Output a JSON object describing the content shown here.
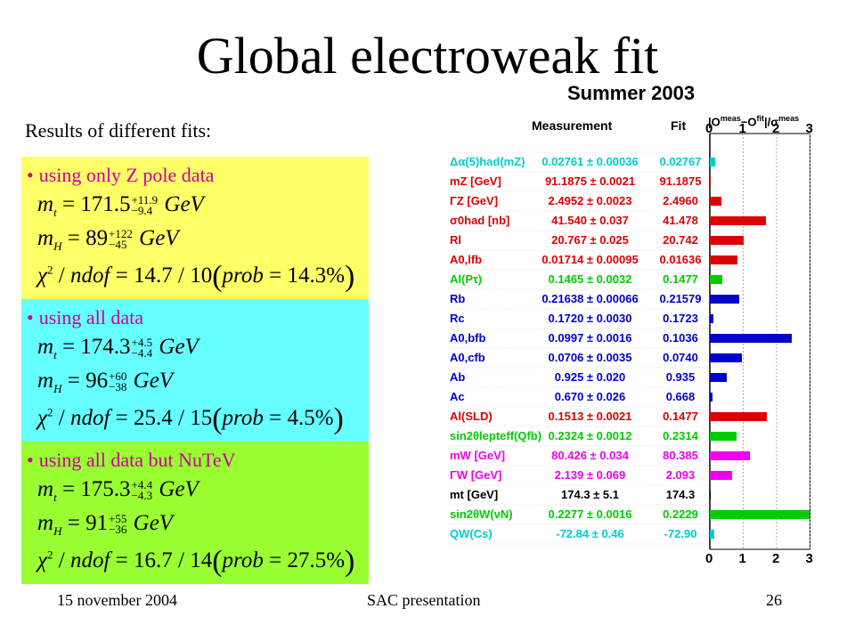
{
  "slide": {
    "title": "Global electroweak fit",
    "subtitle": "Results of different fits:",
    "footer_date": "15 november 2004",
    "footer_center": "SAC presentation",
    "footer_page": "26"
  },
  "fits": [
    {
      "heading": "using only Z pole data",
      "bg": "#ffff66",
      "mt": "171.5",
      "mt_up": "+11.9",
      "mt_dn": "−9.4",
      "mh": "89",
      "mh_up": "+122",
      "mh_dn": "−45",
      "chi2": "14.7",
      "ndof": "10",
      "prob": "14.3"
    },
    {
      "heading": "using all data",
      "bg": "#66ffff",
      "mt": "174.3",
      "mt_up": "+4.5",
      "mt_dn": "−4.4",
      "mh": "96",
      "mh_up": "+60",
      "mh_dn": "−38",
      "chi2": "25.4",
      "ndof": "15",
      "prob": "4.5"
    },
    {
      "heading": "using all data but NuTeV",
      "bg": "#99ff33",
      "mt": "175.3",
      "mt_up": "+4.4",
      "mt_dn": "−4.3",
      "mh": "91",
      "mh_up": "+55",
      "mh_dn": "−36",
      "chi2": "16.7",
      "ndof": "14",
      "prob": "27.5"
    }
  ],
  "figure": {
    "title": "Summer 2003",
    "col_measurement": "Measurement",
    "col_fit": "Fit",
    "axis_header": "|O",
    "axis_header_sup1": "meas",
    "axis_header_mid": "−O",
    "axis_header_sup2": "fit",
    "axis_header_end": "|/σ",
    "axis_header_sup3": "meas",
    "ticks": [
      "0",
      "1",
      "2",
      "3"
    ]
  },
  "chart_data": {
    "type": "bar",
    "title": "Summer 2003",
    "xlim": [
      0,
      3
    ],
    "categories": [
      "Δα(5)had(mZ)",
      "mZ [GeV]",
      "ΓZ [GeV]",
      "σ0had [nb]",
      "Rl",
      "A0,lfb",
      "Al(Pτ)",
      "Rb",
      "Rc",
      "A0,bfb",
      "A0,cfb",
      "Ab",
      "Ac",
      "Al(SLD)",
      "sin2θlepteff(Qfb)",
      "mW [GeV]",
      "ΓW [GeV]",
      "mt [GeV]",
      "sin2θW(νN)",
      "QW(Cs)"
    ],
    "measurements": [
      "0.02761 ± 0.00036",
      "91.1875 ± 0.0021",
      "2.4952 ± 0.0023",
      "41.540 ± 0.037",
      "20.767 ± 0.025",
      "0.01714 ± 0.00095",
      "0.1465 ± 0.0032",
      "0.21638 ± 0.00066",
      "0.1720 ± 0.0030",
      "0.0997 ± 0.0016",
      "0.0706 ± 0.0035",
      "0.925 ± 0.020",
      "0.670 ± 0.026",
      "0.1513 ± 0.0021",
      "0.2324 ± 0.0012",
      "80.426 ± 0.034",
      "2.139 ± 0.069",
      "174.3 ± 5.1",
      "0.2277 ± 0.0016",
      "-72.84 ± 0.46"
    ],
    "fits": [
      "0.02767",
      "91.1875",
      "2.4960",
      "41.478",
      "20.742",
      "0.01636",
      "0.1477",
      "0.21579",
      "0.1723",
      "0.1036",
      "0.0740",
      "0.935",
      "0.668",
      "0.1477",
      "0.2314",
      "80.385",
      "2.093",
      "174.3",
      "0.2229",
      "-72.90"
    ],
    "values": [
      0.17,
      0.01,
      0.35,
      1.67,
      1.0,
      0.82,
      0.38,
      0.89,
      0.1,
      2.44,
      0.97,
      0.5,
      0.08,
      1.7,
      0.8,
      1.2,
      0.67,
      0.0,
      2.99,
      0.13
    ],
    "colors": [
      "#00cccc",
      "#dd0000",
      "#dd0000",
      "#dd0000",
      "#dd0000",
      "#dd0000",
      "#00cc00",
      "#0000cc",
      "#0000cc",
      "#0000cc",
      "#0000cc",
      "#0000cc",
      "#0000cc",
      "#dd0000",
      "#00cc00",
      "#ee00ee",
      "#ee00ee",
      "#000000",
      "#00cc00",
      "#00cccc"
    ]
  }
}
